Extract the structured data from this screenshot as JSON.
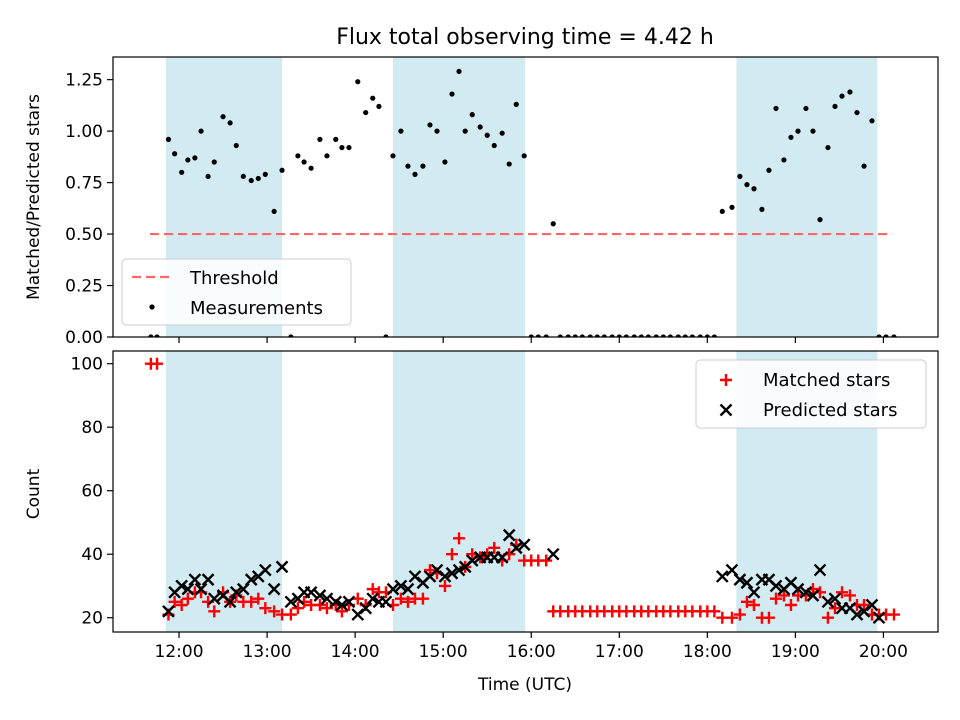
{
  "chart_data": {
    "title": "Flux total observing time = 4.42 h",
    "xlabel": "Time (UTC)",
    "x_ticks": [
      "12:00",
      "13:00",
      "14:00",
      "15:00",
      "16:00",
      "17:00",
      "18:00",
      "19:00",
      "20:00"
    ],
    "xlim": [
      11.25,
      20.62
    ],
    "shaded_intervals": [
      [
        11.85,
        13.17
      ],
      [
        14.43,
        15.93
      ],
      [
        18.33,
        19.93
      ]
    ],
    "shade_color": "#add8e6",
    "panels": [
      {
        "type": "scatter",
        "ylabel": "Matched/Predicted stars",
        "ylim": [
          0,
          1.36
        ],
        "y_ticks": [
          "0.00",
          "0.25",
          "0.50",
          "0.75",
          "1.00",
          "1.25"
        ],
        "threshold": {
          "name": "Threshold",
          "y": 0.5,
          "x_range": [
            11.67,
            20.1
          ],
          "color": "#ff6666"
        },
        "legend": [
          "Threshold",
          "Measurements"
        ],
        "legend_position": "lower-left",
        "series": [
          {
            "name": "Measurements",
            "color": "#000000",
            "x": [
              11.68,
              11.75,
              11.88,
              11.95,
              12.03,
              12.1,
              12.18,
              12.25,
              12.33,
              12.4,
              12.5,
              12.58,
              12.65,
              12.73,
              12.82,
              12.9,
              12.98,
              13.08,
              13.17,
              13.27,
              13.35,
              13.42,
              13.5,
              13.6,
              13.68,
              13.78,
              13.85,
              13.93,
              14.03,
              14.12,
              14.2,
              14.27,
              14.35,
              14.43,
              14.52,
              14.6,
              14.68,
              14.77,
              14.85,
              14.93,
              15.02,
              15.1,
              15.18,
              15.25,
              15.33,
              15.42,
              15.5,
              15.58,
              15.67,
              15.75,
              15.83,
              15.92,
              16.0,
              16.08,
              16.17,
              16.25,
              16.33,
              16.42,
              16.5,
              16.58,
              16.67,
              16.75,
              16.83,
              16.92,
              17.0,
              17.08,
              17.17,
              17.25,
              17.33,
              17.42,
              17.5,
              17.58,
              17.67,
              17.75,
              17.83,
              17.92,
              18.0,
              18.08,
              18.17,
              18.28,
              18.37,
              18.45,
              18.53,
              18.62,
              18.7,
              18.78,
              18.87,
              18.95,
              19.03,
              19.12,
              19.2,
              19.28,
              19.37,
              19.45,
              19.53,
              19.62,
              19.7,
              19.78,
              19.87,
              19.95,
              20.03,
              20.12
            ],
            "y": [
              0.0,
              0.0,
              0.96,
              0.89,
              0.8,
              0.86,
              0.87,
              1.0,
              0.78,
              0.85,
              1.07,
              1.04,
              0.93,
              0.78,
              0.76,
              0.77,
              0.79,
              0.61,
              0.81,
              0.0,
              0.88,
              0.85,
              0.82,
              0.96,
              0.88,
              0.96,
              0.92,
              0.92,
              1.24,
              1.09,
              1.16,
              1.12,
              0.0,
              0.88,
              1.0,
              0.83,
              0.79,
              0.83,
              1.03,
              1.0,
              0.85,
              1.18,
              1.29,
              1.0,
              1.08,
              1.02,
              0.98,
              0.93,
              0.99,
              0.84,
              1.13,
              0.88,
              0.0,
              0.0,
              0.0,
              0.55,
              0.0,
              0.0,
              0.0,
              0.0,
              0.0,
              0.0,
              0.0,
              0.0,
              0.0,
              0.0,
              0.0,
              0.0,
              0.0,
              0.0,
              0.0,
              0.0,
              0.0,
              0.0,
              0.0,
              0.0,
              0.0,
              0.0,
              0.61,
              0.63,
              0.78,
              0.74,
              0.72,
              0.62,
              0.81,
              1.11,
              0.86,
              0.97,
              1.0,
              1.11,
              1.0,
              0.57,
              0.92,
              1.12,
              1.17,
              1.19,
              1.09,
              0.83,
              1.05,
              0.0,
              0.0,
              0.0
            ]
          }
        ]
      },
      {
        "type": "scatter",
        "ylabel": "Count",
        "ylim": [
          15.5,
          104
        ],
        "y_ticks": [
          "20",
          "40",
          "60",
          "80",
          "100"
        ],
        "legend": [
          "Matched stars",
          "Predicted stars"
        ],
        "legend_position": "top-right",
        "series": [
          {
            "name": "Matched stars",
            "marker": "plus",
            "color": "#ff0000",
            "x": [
              11.68,
              11.75,
              11.88,
              11.95,
              12.03,
              12.1,
              12.18,
              12.25,
              12.33,
              12.4,
              12.5,
              12.58,
              12.65,
              12.73,
              12.82,
              12.9,
              12.98,
              13.08,
              13.17,
              13.27,
              13.35,
              13.42,
              13.5,
              13.6,
              13.68,
              13.78,
              13.85,
              13.93,
              14.03,
              14.12,
              14.2,
              14.27,
              14.35,
              14.43,
              14.52,
              14.6,
              14.68,
              14.77,
              14.85,
              14.93,
              15.02,
              15.1,
              15.18,
              15.25,
              15.33,
              15.42,
              15.5,
              15.58,
              15.67,
              15.75,
              15.83,
              15.92,
              16.0,
              16.08,
              16.17,
              16.25,
              16.33,
              16.42,
              16.5,
              16.58,
              16.67,
              16.75,
              16.83,
              16.92,
              17.0,
              17.08,
              17.17,
              17.25,
              17.33,
              17.42,
              17.5,
              17.58,
              17.67,
              17.75,
              17.83,
              17.92,
              18.0,
              18.08,
              18.17,
              18.28,
              18.37,
              18.45,
              18.53,
              18.62,
              18.7,
              18.78,
              18.87,
              18.95,
              19.03,
              19.12,
              19.2,
              19.28,
              19.37,
              19.45,
              19.53,
              19.62,
              19.7,
              19.78,
              19.87,
              19.95,
              20.03,
              20.12
            ],
            "y": [
              100,
              100,
              21,
              25,
              24,
              26,
              28,
              28,
              25,
              22,
              28,
              25,
              27,
              25,
              25,
              26,
              23,
              22,
              21,
              21,
              23,
              25,
              24,
              24,
              23,
              24,
              22,
              24,
              26,
              24,
              29,
              28,
              28,
              24,
              26,
              25,
              26,
              26,
              35,
              34,
              30,
              40,
              45,
              36,
              40,
              39,
              40,
              42,
              38,
              40,
              43,
              38,
              38,
              38,
              38,
              22,
              22,
              22,
              22,
              22,
              22,
              22,
              22,
              22,
              22,
              22,
              22,
              22,
              22,
              22,
              22,
              22,
              22,
              22,
              22,
              22,
              22,
              22,
              20,
              20,
              21,
              25,
              24,
              20,
              20,
              26,
              27,
              24,
              27,
              27,
              29,
              28,
              20,
              23,
              28,
              27,
              24,
              24,
              21,
              21,
              21,
              21
            ]
          },
          {
            "name": "Predicted stars",
            "marker": "x",
            "color": "#000000",
            "x": [
              11.88,
              11.95,
              12.03,
              12.1,
              12.18,
              12.25,
              12.33,
              12.4,
              12.5,
              12.58,
              12.65,
              12.73,
              12.82,
              12.9,
              12.98,
              13.08,
              13.17,
              13.27,
              13.35,
              13.42,
              13.5,
              13.6,
              13.68,
              13.78,
              13.85,
              13.93,
              14.03,
              14.12,
              14.2,
              14.27,
              14.35,
              14.43,
              14.52,
              14.6,
              14.68,
              14.77,
              14.85,
              14.93,
              15.02,
              15.1,
              15.18,
              15.25,
              15.33,
              15.42,
              15.5,
              15.58,
              15.67,
              15.75,
              15.83,
              15.92,
              16.25,
              18.17,
              18.28,
              18.37,
              18.45,
              18.53,
              18.62,
              18.7,
              18.78,
              18.87,
              18.95,
              19.03,
              19.12,
              19.2,
              19.28,
              19.37,
              19.45,
              19.53,
              19.62,
              19.7,
              19.78,
              19.87,
              19.95
            ],
            "y": [
              22,
              28,
              30,
              29,
              32,
              29,
              32,
              26,
              27,
              25,
              28,
              29,
              32,
              33,
              35,
              29,
              36,
              25,
              26,
              28,
              28,
              27,
              26,
              25,
              24,
              25,
              21,
              23,
              26,
              25,
              25,
              29,
              30,
              29,
              33,
              31,
              33,
              35,
              33,
              34,
              35,
              36,
              38,
              39,
              39,
              39,
              39,
              46,
              42,
              43,
              40,
              33,
              35,
              32,
              31,
              28,
              32,
              32,
              30,
              29,
              31,
              29,
              28,
              27,
              35,
              25,
              26,
              23,
              23,
              21,
              22,
              24,
              20
            ]
          }
        ]
      }
    ]
  }
}
